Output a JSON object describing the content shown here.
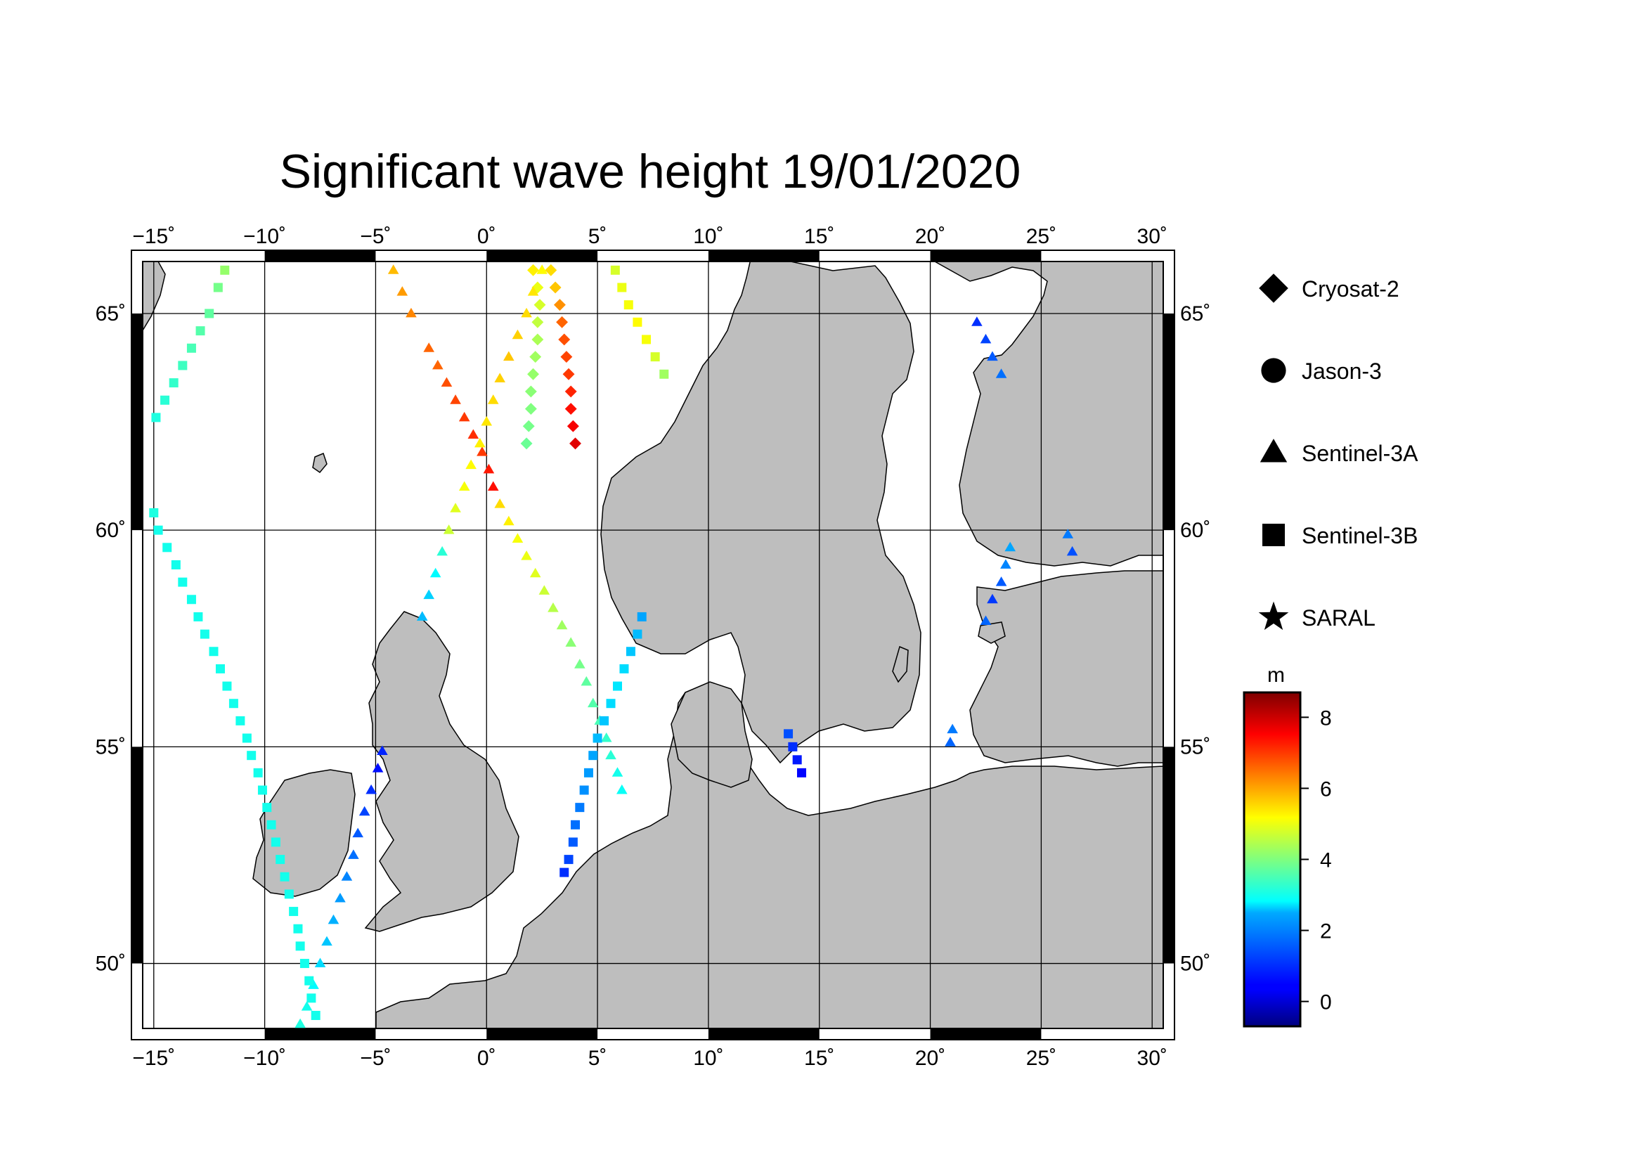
{
  "title": "Significant wave height 19/01/2020",
  "map": {
    "lon_range": [
      -15.5,
      30.5
    ],
    "lat_range": [
      48.5,
      66.2
    ],
    "lon_ticks": [
      -15,
      -10,
      -5,
      0,
      5,
      10,
      15,
      20,
      25,
      30
    ],
    "lon_tick_labels": [
      "−15˚",
      "−10˚",
      "−5˚",
      "0˚",
      "5˚",
      "10˚",
      "15˚",
      "20˚",
      "25˚",
      "30˚"
    ],
    "lat_ticks": [
      50,
      55,
      60,
      65
    ],
    "lat_tick_labels": [
      "50˚",
      "55˚",
      "60˚",
      "65˚"
    ],
    "grid": true,
    "land_color": "#bebebe",
    "sea_color": "#ffffff"
  },
  "legend": {
    "items": [
      {
        "label": "Cryosat-2",
        "symbol": "diamond"
      },
      {
        "label": "Jason-3",
        "symbol": "circle"
      },
      {
        "label": "Sentinel-3A",
        "symbol": "triangle"
      },
      {
        "label": "Sentinel-3B",
        "symbol": "square"
      },
      {
        "label": "SARAL",
        "symbol": "star"
      }
    ]
  },
  "colorbar": {
    "unit": "m",
    "range": [
      -0.7,
      8.7
    ],
    "ticks": [
      0,
      2,
      4,
      6,
      8
    ],
    "tick_labels": [
      "0",
      "2",
      "4",
      "6",
      "8"
    ]
  },
  "chart_data": {
    "type": "scatter",
    "title": "Significant wave height 19/01/2020",
    "colorbar_label": "m",
    "series": [
      {
        "name": "Cryosat-2",
        "symbol": "diamond",
        "points": [
          [
            2.1,
            66.0,
            5.3
          ],
          [
            2.3,
            65.6,
            5.0
          ],
          [
            2.4,
            65.2,
            4.8
          ],
          [
            2.3,
            64.8,
            4.6
          ],
          [
            2.3,
            64.4,
            4.4
          ],
          [
            2.2,
            64.0,
            4.3
          ],
          [
            2.1,
            63.6,
            4.2
          ],
          [
            2.0,
            63.2,
            4.1
          ],
          [
            2.0,
            62.8,
            4.0
          ],
          [
            1.9,
            62.4,
            3.9
          ],
          [
            1.8,
            62.0,
            3.8
          ],
          [
            2.9,
            66.0,
            5.5
          ],
          [
            3.1,
            65.6,
            5.7
          ],
          [
            3.3,
            65.2,
            6.2
          ],
          [
            3.4,
            64.8,
            6.6
          ],
          [
            3.5,
            64.4,
            6.8
          ],
          [
            3.6,
            64.0,
            6.9
          ],
          [
            3.7,
            63.6,
            7.0
          ],
          [
            3.8,
            63.2,
            7.2
          ],
          [
            3.8,
            62.8,
            7.4
          ],
          [
            3.9,
            62.4,
            7.6
          ],
          [
            4.0,
            62.0,
            7.8
          ]
        ]
      },
      {
        "name": "Jason-3",
        "symbol": "circle",
        "points": []
      },
      {
        "name": "Sentinel-3A",
        "symbol": "triangle",
        "points": [
          [
            -4.2,
            66.0,
            5.8
          ],
          [
            -3.8,
            65.5,
            6.1
          ],
          [
            -3.4,
            65.0,
            6.3
          ],
          [
            -2.6,
            64.2,
            6.6
          ],
          [
            -2.2,
            63.8,
            6.6
          ],
          [
            -1.8,
            63.4,
            6.8
          ],
          [
            -1.4,
            63.0,
            6.9
          ],
          [
            -1.0,
            62.6,
            7.0
          ],
          [
            -0.6,
            62.2,
            7.1
          ],
          [
            -0.2,
            61.8,
            7.0
          ],
          [
            0.1,
            61.4,
            7.3
          ],
          [
            0.3,
            61.0,
            7.4
          ],
          [
            0.6,
            60.6,
            5.5
          ],
          [
            1.0,
            60.2,
            5.3
          ],
          [
            1.4,
            59.8,
            5.1
          ],
          [
            1.8,
            59.4,
            5.0
          ],
          [
            2.2,
            59.0,
            4.9
          ],
          [
            2.6,
            58.6,
            4.7
          ],
          [
            3.0,
            58.2,
            4.5
          ],
          [
            3.4,
            57.8,
            4.3
          ],
          [
            3.8,
            57.4,
            4.1
          ],
          [
            4.2,
            56.9,
            3.9
          ],
          [
            4.5,
            56.5,
            3.7
          ],
          [
            4.8,
            56.0,
            3.6
          ],
          [
            5.1,
            55.6,
            3.5
          ],
          [
            5.4,
            55.2,
            3.3
          ],
          [
            5.6,
            54.8,
            3.2
          ],
          [
            5.9,
            54.4,
            3.0
          ],
          [
            6.1,
            54.0,
            2.9
          ],
          [
            2.5,
            66.0,
            5.2
          ],
          [
            2.1,
            65.5,
            5.4
          ],
          [
            1.8,
            65.0,
            5.5
          ],
          [
            1.4,
            64.5,
            5.6
          ],
          [
            1.0,
            64.0,
            5.7
          ],
          [
            0.6,
            63.5,
            5.6
          ],
          [
            0.3,
            63.0,
            5.5
          ],
          [
            0.0,
            62.5,
            5.4
          ],
          [
            -0.3,
            62.0,
            5.3
          ],
          [
            -0.7,
            61.5,
            5.2
          ],
          [
            -1.0,
            61.0,
            5.1
          ],
          [
            -1.4,
            60.5,
            4.9
          ],
          [
            -1.7,
            60.0,
            4.7
          ],
          [
            -2.0,
            59.5,
            3.2
          ],
          [
            -2.3,
            59.0,
            2.8
          ],
          [
            -2.6,
            58.5,
            2.4
          ],
          [
            -2.9,
            58.0,
            2.2
          ],
          [
            -4.7,
            54.9,
            0.8
          ],
          [
            -4.9,
            54.5,
            0.6
          ],
          [
            -5.2,
            54.0,
            0.9
          ],
          [
            -5.5,
            53.5,
            1.1
          ],
          [
            -5.8,
            53.0,
            1.3
          ],
          [
            -6.0,
            52.5,
            1.5
          ],
          [
            -6.3,
            52.0,
            1.7
          ],
          [
            -6.6,
            51.5,
            1.9
          ],
          [
            -6.9,
            51.0,
            2.1
          ],
          [
            -7.2,
            50.5,
            2.3
          ],
          [
            -7.5,
            50.0,
            2.5
          ],
          [
            -7.8,
            49.5,
            2.8
          ],
          [
            -8.1,
            49.0,
            3.0
          ],
          [
            -8.4,
            48.6,
            3.1
          ],
          [
            22.1,
            64.8,
            0.9
          ],
          [
            22.5,
            64.4,
            1.1
          ],
          [
            22.8,
            64.0,
            1.3
          ],
          [
            23.2,
            63.6,
            1.5
          ],
          [
            23.6,
            59.6,
            2.0
          ],
          [
            23.4,
            59.2,
            1.7
          ],
          [
            23.2,
            58.8,
            1.3
          ],
          [
            22.8,
            58.4,
            1.0
          ],
          [
            22.5,
            57.9,
            1.4
          ],
          [
            26.2,
            59.9,
            1.6
          ],
          [
            26.4,
            59.5,
            1.2
          ],
          [
            21.0,
            55.4,
            1.6
          ],
          [
            20.9,
            55.1,
            1.4
          ]
        ]
      },
      {
        "name": "Sentinel-3B",
        "symbol": "square",
        "points": [
          [
            -11.8,
            66.0,
            4.2
          ],
          [
            -12.1,
            65.6,
            3.9
          ],
          [
            -12.5,
            65.0,
            3.7
          ],
          [
            -12.9,
            64.6,
            3.6
          ],
          [
            -13.3,
            64.2,
            3.5
          ],
          [
            -13.7,
            63.8,
            3.4
          ],
          [
            -14.1,
            63.4,
            3.3
          ],
          [
            -14.5,
            63.0,
            3.2
          ],
          [
            -14.9,
            62.6,
            3.1
          ],
          [
            -15.0,
            60.4,
            3.1
          ],
          [
            -14.8,
            60.0,
            3.0
          ],
          [
            -14.4,
            59.6,
            3.0
          ],
          [
            -14.0,
            59.2,
            3.0
          ],
          [
            -13.7,
            58.8,
            3.0
          ],
          [
            -13.3,
            58.4,
            3.0
          ],
          [
            -13.0,
            58.0,
            3.0
          ],
          [
            -12.7,
            57.6,
            3.0
          ],
          [
            -12.3,
            57.2,
            3.0
          ],
          [
            -12.0,
            56.8,
            3.0
          ],
          [
            -11.7,
            56.4,
            3.0
          ],
          [
            -11.4,
            56.0,
            3.0
          ],
          [
            -11.1,
            55.6,
            3.0
          ],
          [
            -10.8,
            55.2,
            3.0
          ],
          [
            -10.6,
            54.8,
            3.0
          ],
          [
            -10.3,
            54.4,
            3.0
          ],
          [
            -10.1,
            54.0,
            3.0
          ],
          [
            -9.9,
            53.6,
            3.0
          ],
          [
            -9.7,
            53.2,
            3.0
          ],
          [
            -9.5,
            52.8,
            3.0
          ],
          [
            -9.3,
            52.4,
            3.0
          ],
          [
            -9.1,
            52.0,
            3.0
          ],
          [
            -8.9,
            51.6,
            3.0
          ],
          [
            -8.7,
            51.2,
            3.0
          ],
          [
            -8.5,
            50.8,
            3.0
          ],
          [
            -8.4,
            50.4,
            3.0
          ],
          [
            -8.2,
            50.0,
            3.0
          ],
          [
            -8.0,
            49.6,
            3.0
          ],
          [
            -7.9,
            49.2,
            3.0
          ],
          [
            -7.7,
            48.8,
            3.0
          ],
          [
            5.8,
            66.0,
            4.8
          ],
          [
            6.1,
            65.6,
            5.0
          ],
          [
            6.4,
            65.2,
            5.1
          ],
          [
            6.8,
            64.8,
            5.2
          ],
          [
            7.2,
            64.4,
            5.1
          ],
          [
            7.6,
            64.0,
            4.8
          ],
          [
            8.0,
            63.6,
            4.3
          ],
          [
            7.0,
            58.0,
            2.0
          ],
          [
            6.8,
            57.6,
            2.2
          ],
          [
            6.5,
            57.2,
            2.3
          ],
          [
            6.2,
            56.8,
            2.5
          ],
          [
            5.9,
            56.4,
            2.6
          ],
          [
            5.6,
            56.0,
            2.5
          ],
          [
            5.3,
            55.6,
            2.3
          ],
          [
            5.0,
            55.2,
            2.2
          ],
          [
            4.8,
            54.8,
            2.0
          ],
          [
            4.6,
            54.4,
            1.9
          ],
          [
            4.4,
            54.0,
            1.8
          ],
          [
            4.2,
            53.6,
            1.6
          ],
          [
            4.0,
            53.2,
            1.5
          ],
          [
            3.9,
            52.8,
            1.3
          ],
          [
            3.7,
            52.4,
            1.1
          ],
          [
            3.5,
            52.1,
            0.9
          ],
          [
            13.6,
            55.3,
            1.2
          ],
          [
            13.8,
            55.0,
            0.9
          ],
          [
            14.0,
            54.7,
            0.7
          ],
          [
            14.2,
            54.4,
            0.5
          ]
        ]
      },
      {
        "name": "SARAL",
        "symbol": "star",
        "points": []
      }
    ]
  }
}
